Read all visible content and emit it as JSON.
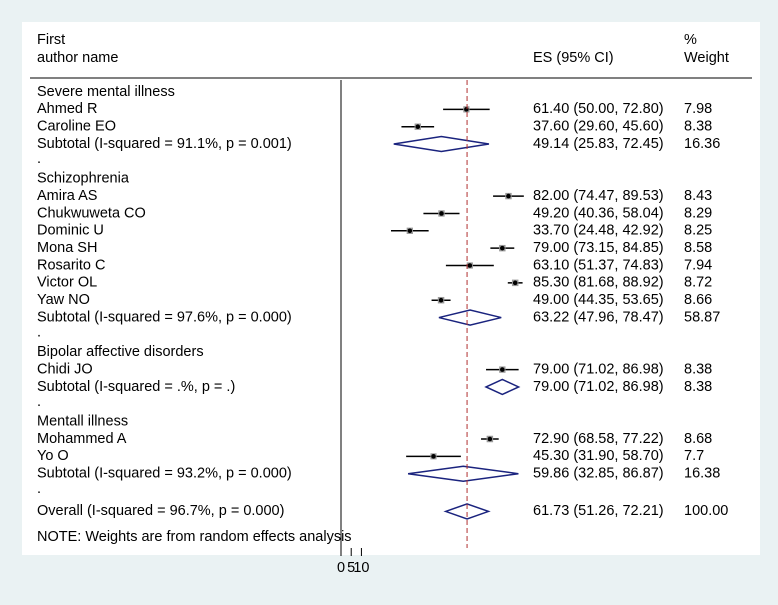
{
  "chart_data": {
    "type": "forest",
    "header": {
      "study": [
        "First",
        "author name"
      ],
      "es": [
        "ES (95% CI)"
      ],
      "weight": [
        "%",
        "Weight"
      ]
    },
    "xlim": [
      0,
      95
    ],
    "xticks": [
      0,
      5,
      10
    ],
    "groups": [
      {
        "name": "Severe mental illness",
        "studies": [
          {
            "label": "Ahmed R",
            "es": 61.4,
            "lo": 50.0,
            "hi": 72.8,
            "es_label": "61.40 (50.00, 72.80)",
            "weight": 7.98
          },
          {
            "label": "Caroline EO",
            "es": 37.6,
            "lo": 29.6,
            "hi": 45.6,
            "es_label": "37.60 (29.60, 45.60)",
            "weight": 8.38
          }
        ],
        "subtotal": {
          "label": "Subtotal  (I-squared = 91.1%, p = 0.001)",
          "es": 49.14,
          "lo": 25.83,
          "hi": 72.45,
          "es_label": "49.14 (25.83, 72.45)",
          "weight": 16.36
        },
        "separator": "."
      },
      {
        "name": "Schizophrenia",
        "studies": [
          {
            "label": "Amira AS",
            "es": 82.0,
            "lo": 74.47,
            "hi": 89.53,
            "es_label": "82.00 (74.47, 89.53)",
            "weight": 8.43
          },
          {
            "label": "Chukwuweta CO",
            "es": 49.2,
            "lo": 40.36,
            "hi": 58.04,
            "es_label": "49.20 (40.36, 58.04)",
            "weight": 8.29
          },
          {
            "label": "Dominic U",
            "es": 33.7,
            "lo": 24.48,
            "hi": 42.92,
            "es_label": "33.70 (24.48, 42.92)",
            "weight": 8.25
          },
          {
            "label": "Mona SH",
            "es": 79.0,
            "lo": 73.15,
            "hi": 84.85,
            "es_label": "79.00 (73.15, 84.85)",
            "weight": 8.58
          },
          {
            "label": "Rosarito C",
            "es": 63.1,
            "lo": 51.37,
            "hi": 74.83,
            "es_label": "63.10 (51.37, 74.83)",
            "weight": 7.94
          },
          {
            "label": "Victor OL",
            "es": 85.3,
            "lo": 81.68,
            "hi": 88.92,
            "es_label": "85.30 (81.68, 88.92)",
            "weight": 8.72
          },
          {
            "label": "Yaw NO",
            "es": 49.0,
            "lo": 44.35,
            "hi": 53.65,
            "es_label": "49.00 (44.35, 53.65)",
            "weight": 8.66
          }
        ],
        "subtotal": {
          "label": "Subtotal  (I-squared = 97.6%, p = 0.000)",
          "es": 63.22,
          "lo": 47.96,
          "hi": 78.47,
          "es_label": "63.22 (47.96, 78.47)",
          "weight": 58.87
        },
        "separator": "."
      },
      {
        "name": "Bipolar affective disorders",
        "studies": [
          {
            "label": "Chidi JO",
            "es": 79.0,
            "lo": 71.02,
            "hi": 86.98,
            "es_label": "79.00 (71.02, 86.98)",
            "weight": 8.38
          }
        ],
        "subtotal": {
          "label": "Subtotal  (I-squared = .%, p = .)",
          "es": 79.0,
          "lo": 71.02,
          "hi": 86.98,
          "es_label": "79.00 (71.02, 86.98)",
          "weight": 8.38
        },
        "separator": "."
      },
      {
        "name": "Mentall illness",
        "studies": [
          {
            "label": "Mohammed A",
            "es": 72.9,
            "lo": 68.58,
            "hi": 77.22,
            "es_label": "72.90 (68.58, 77.22)",
            "weight": 8.68
          },
          {
            "label": "Yo O",
            "es": 45.3,
            "lo": 31.9,
            "hi": 58.7,
            "es_label": "45.30 (31.90, 58.70)",
            "weight": 7.7
          }
        ],
        "subtotal": {
          "label": "Subtotal  (I-squared = 93.2%, p = 0.000)",
          "es": 59.86,
          "lo": 32.85,
          "hi": 86.87,
          "es_label": "59.86 (32.85, 86.87)",
          "weight": 16.38
        },
        "separator": "."
      }
    ],
    "overall": {
      "label": "Overall  (I-squared = 96.7%, p = 0.000)",
      "es": 61.73,
      "lo": 51.26,
      "hi": 72.21,
      "es_label": "61.73 (51.26, 72.21)",
      "weight": 100,
      "weight_label": "100.00"
    },
    "note": "NOTE: Weights are from random effects analysis"
  }
}
